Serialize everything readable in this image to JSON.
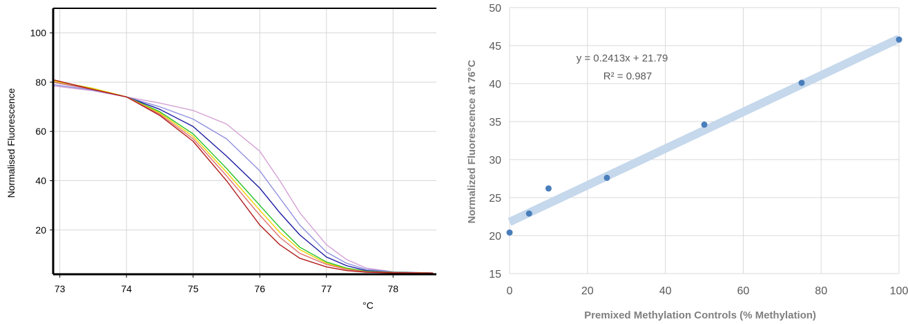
{
  "chart_data": [
    {
      "type": "line",
      "title": "",
      "xlabel": "°C",
      "ylabel": "Normalised Fluorescence",
      "xlim": [
        72.9,
        78.65
      ],
      "ylim": [
        2,
        110
      ],
      "xticks": [
        73,
        74,
        75,
        76,
        77,
        78
      ],
      "yticks": [
        20,
        40,
        60,
        80,
        100
      ],
      "grid": true,
      "legend": "none",
      "series": [
        {
          "color": "#d4a0d4",
          "points": [
            [
              72.9,
              78.5
            ],
            [
              73.5,
              76.5
            ],
            [
              74.0,
              74.0
            ],
            [
              74.5,
              71.5
            ],
            [
              75.0,
              68.5
            ],
            [
              75.5,
              63.0
            ],
            [
              76.0,
              52.0
            ],
            [
              76.3,
              40.0
            ],
            [
              76.6,
              27.0
            ],
            [
              77.0,
              14.0
            ],
            [
              77.3,
              8.0
            ],
            [
              77.6,
              4.5
            ],
            [
              78.0,
              3.0
            ],
            [
              78.6,
              2.5
            ]
          ]
        },
        {
          "color": "#9090e0",
          "points": [
            [
              72.9,
              79.0
            ],
            [
              73.5,
              76.8
            ],
            [
              74.0,
              74.0
            ],
            [
              74.5,
              70.0
            ],
            [
              75.0,
              65.0
            ],
            [
              75.5,
              57.0
            ],
            [
              76.0,
              44.0
            ],
            [
              76.3,
              33.0
            ],
            [
              76.6,
              22.0
            ],
            [
              77.0,
              11.0
            ],
            [
              77.3,
              6.5
            ],
            [
              77.6,
              4.0
            ],
            [
              78.0,
              3.0
            ],
            [
              78.6,
              2.5
            ]
          ]
        },
        {
          "color": "#1a1aa0",
          "points": [
            [
              72.9,
              80.0
            ],
            [
              73.5,
              77.0
            ],
            [
              74.0,
              74.0
            ],
            [
              74.5,
              69.0
            ],
            [
              75.0,
              62.0
            ],
            [
              75.5,
              50.0
            ],
            [
              76.0,
              37.0
            ],
            [
              76.3,
              27.0
            ],
            [
              76.6,
              18.0
            ],
            [
              77.0,
              9.0
            ],
            [
              77.3,
              5.5
            ],
            [
              77.6,
              3.5
            ],
            [
              78.0,
              2.8
            ],
            [
              78.6,
              2.5
            ]
          ]
        },
        {
          "color": "#20c020",
          "points": [
            [
              72.9,
              80.5
            ],
            [
              73.5,
              77.5
            ],
            [
              74.0,
              74.0
            ],
            [
              74.5,
              68.0
            ],
            [
              75.0,
              59.0
            ],
            [
              75.5,
              45.0
            ],
            [
              76.0,
              30.0
            ],
            [
              76.3,
              21.0
            ],
            [
              76.6,
              13.0
            ],
            [
              77.0,
              7.0
            ],
            [
              77.3,
              4.5
            ],
            [
              77.6,
              3.2
            ],
            [
              78.0,
              2.8
            ],
            [
              78.6,
              2.5
            ]
          ]
        },
        {
          "color": "#f0d000",
          "points": [
            [
              72.9,
              80.5
            ],
            [
              73.5,
              77.5
            ],
            [
              74.0,
              74.0
            ],
            [
              74.5,
              67.5
            ],
            [
              75.0,
              58.0
            ],
            [
              75.5,
              43.5
            ],
            [
              76.0,
              28.0
            ],
            [
              76.3,
              19.0
            ],
            [
              76.6,
              12.0
            ],
            [
              77.0,
              6.5
            ],
            [
              77.3,
              4.2
            ],
            [
              77.6,
              3.0
            ],
            [
              78.0,
              2.7
            ],
            [
              78.6,
              2.5
            ]
          ]
        },
        {
          "color": "#e07070",
          "points": [
            [
              72.9,
              80.0
            ],
            [
              73.5,
              77.0
            ],
            [
              74.0,
              74.0
            ],
            [
              74.5,
              67.0
            ],
            [
              75.0,
              57.0
            ],
            [
              75.5,
              42.0
            ],
            [
              76.0,
              26.0
            ],
            [
              76.3,
              17.0
            ],
            [
              76.6,
              10.5
            ],
            [
              77.0,
              6.0
            ],
            [
              77.3,
              4.0
            ],
            [
              77.6,
              3.0
            ],
            [
              78.0,
              2.7
            ],
            [
              78.6,
              2.5
            ]
          ]
        },
        {
          "color": "#b01818",
          "points": [
            [
              72.9,
              81.0
            ],
            [
              73.5,
              77.0
            ],
            [
              74.0,
              74.0
            ],
            [
              74.5,
              66.5
            ],
            [
              75.0,
              56.0
            ],
            [
              75.5,
              40.0
            ],
            [
              76.0,
              22.0
            ],
            [
              76.3,
              14.0
            ],
            [
              76.6,
              8.5
            ],
            [
              77.0,
              5.0
            ],
            [
              77.3,
              3.5
            ],
            [
              77.6,
              2.8
            ],
            [
              78.0,
              2.6
            ],
            [
              78.6,
              2.5
            ]
          ]
        }
      ]
    },
    {
      "type": "scatter",
      "title": "",
      "xlabel": "Premixed Methylation Controls (% Methylation)",
      "ylabel": "Normalized Fluorescence at 76°C",
      "xlim": [
        0,
        100
      ],
      "ylim": [
        15,
        50
      ],
      "xticks": [
        0,
        20,
        40,
        60,
        80,
        100
      ],
      "yticks": [
        15,
        20,
        25,
        30,
        35,
        40,
        45,
        50
      ],
      "grid": true,
      "legend": "none",
      "point_color": "#4a7ebb",
      "trendline_color": "#c5d8ec",
      "trendline": {
        "slope": 0.2413,
        "intercept": 21.79
      },
      "equation": "y = 0.2413x + 21.79",
      "r_squared": "R² = 0.987",
      "points": [
        {
          "x": 0,
          "y": 20.4
        },
        {
          "x": 5,
          "y": 22.9
        },
        {
          "x": 10,
          "y": 26.2
        },
        {
          "x": 25,
          "y": 27.6
        },
        {
          "x": 50,
          "y": 34.6
        },
        {
          "x": 75,
          "y": 40.1
        },
        {
          "x": 100,
          "y": 45.8
        }
      ]
    }
  ]
}
